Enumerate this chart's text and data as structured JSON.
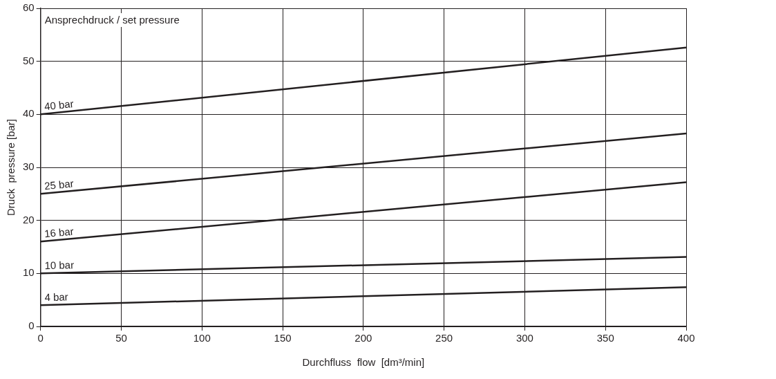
{
  "chart_data": {
    "type": "line",
    "xlabel": "Durchfluss  flow  [dm³/min]",
    "ylabel": "Druck  pressure [bar]",
    "annotations": [
      "Ansprechdruck / set pressure"
    ],
    "x": [
      0,
      400
    ],
    "xlim": [
      0,
      400
    ],
    "xticks": [
      0,
      50,
      100,
      150,
      200,
      250,
      300,
      350,
      400
    ],
    "ylim": [
      0,
      60
    ],
    "yticks": [
      0,
      10,
      20,
      30,
      40,
      50,
      60
    ],
    "grid": true,
    "legend": false,
    "marker": "none",
    "line_style": "solid",
    "series": [
      {
        "name": "40 bar",
        "color": "#231f20",
        "values": [
          40,
          52.6
        ]
      },
      {
        "name": "25 bar",
        "color": "#231f20",
        "values": [
          25,
          36.4
        ]
      },
      {
        "name": "16 bar",
        "color": "#231f20",
        "values": [
          16,
          27.2
        ]
      },
      {
        "name": "10 bar",
        "color": "#231f20",
        "values": [
          10,
          13.1
        ]
      },
      {
        "name": "4 bar",
        "color": "#231f20",
        "values": [
          4,
          7.4
        ]
      }
    ]
  }
}
